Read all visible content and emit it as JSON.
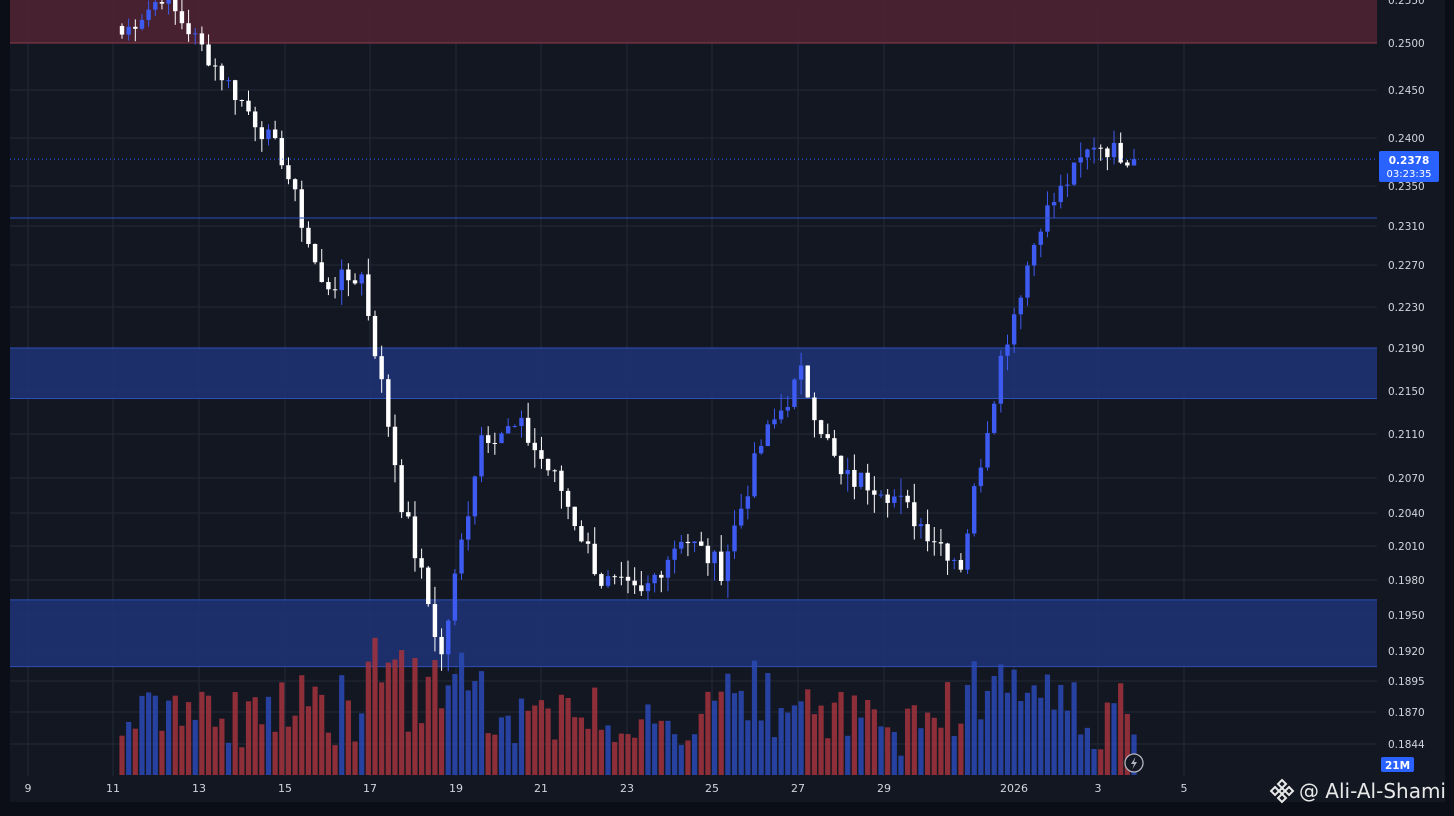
{
  "colors": {
    "background": "#131722",
    "frame": "#0b0e16",
    "grid": "#232838",
    "bull": "#3d5af1",
    "bear": "#ffffff",
    "vol_bull": "#2a49b5",
    "vol_bear": "#a3333d",
    "zone_red": "#4b2232",
    "zone_blue": "#1e3478",
    "price_tag": "#2962ff",
    "axis_text": "#d1d4dc"
  },
  "chart_data": {
    "type": "candlestick",
    "title": "",
    "xlabel": "",
    "ylabel": "",
    "x_tick_labels": [
      "9",
      "11",
      "13",
      "15",
      "17",
      "19",
      "21",
      "23",
      "25",
      "27",
      "29",
      "2026",
      "3",
      "5"
    ],
    "y_tick_labels": [
      "0.2550",
      "0.2500",
      "0.2450",
      "0.2400",
      "0.2350",
      "0.2310",
      "0.2270",
      "0.2230",
      "0.2190",
      "0.2150",
      "0.2110",
      "0.2070",
      "0.2040",
      "0.2010",
      "0.1980",
      "0.1950",
      "0.1920",
      "0.1895",
      "0.1870",
      "0.1844"
    ],
    "y_label_values": [
      0.255,
      0.25,
      0.245,
      0.24,
      0.235,
      0.231,
      0.227,
      0.223,
      0.219,
      0.215,
      0.211,
      0.207,
      0.204,
      0.201,
      0.198,
      0.195,
      0.192,
      0.1895,
      0.187,
      0.1844
    ],
    "current_price_label": "0.2378",
    "current_price": 0.2378,
    "countdown_label": "03:23:35",
    "horizontal_line": 0.2318,
    "zones": [
      {
        "kind": "resistance",
        "top": 0.257,
        "bottom": 0.25
      },
      {
        "kind": "demand",
        "top": 0.219,
        "bottom": 0.2143
      },
      {
        "kind": "demand",
        "top": 0.1963,
        "bottom": 0.1907
      }
    ],
    "volume_label": "21M",
    "key_points": [
      {
        "date": "Dec 11",
        "close": 0.251
      },
      {
        "date": "Dec 12",
        "close": 0.2555
      },
      {
        "date": "Dec 13",
        "close": 0.2495
      },
      {
        "date": "Dec 15",
        "close": 0.238
      },
      {
        "date": "Dec 16",
        "close": 0.225
      },
      {
        "date": "Dec 17",
        "close": 0.226
      },
      {
        "date": "Dec 18",
        "close": 0.205
      },
      {
        "date": "Dec 19",
        "close": 0.1915
      },
      {
        "date": "Dec 20",
        "close": 0.211
      },
      {
        "date": "Dec 21",
        "close": 0.2115
      },
      {
        "date": "Dec 22",
        "close": 0.206
      },
      {
        "date": "Dec 23",
        "close": 0.198
      },
      {
        "date": "Dec 24",
        "close": 0.1965
      },
      {
        "date": "Dec 25",
        "close": 0.202
      },
      {
        "date": "Dec 26",
        "close": 0.199
      },
      {
        "date": "Dec 27",
        "close": 0.21
      },
      {
        "date": "Dec 28",
        "close": 0.2165
      },
      {
        "date": "Dec 29",
        "close": 0.207
      },
      {
        "date": "Dec 30",
        "close": 0.2065
      },
      {
        "date": "Dec 31",
        "close": 0.203
      },
      {
        "date": "Jan 1",
        "close": 0.1995
      },
      {
        "date": "Jan 2",
        "close": 0.218
      },
      {
        "date": "Jan 2 late",
        "close": 0.2315
      },
      {
        "date": "Jan 3",
        "close": 0.2395
      },
      {
        "date": "Jan 3 now",
        "close": 0.2378
      }
    ],
    "grid": true,
    "price_axis_side": "right"
  },
  "watermark": {
    "text": "@ Ali-Al-Shami",
    "logo_icon": "binance-diamond-icon"
  },
  "controls": {
    "auto_scale_icon": "lightning-bolt-icon"
  }
}
